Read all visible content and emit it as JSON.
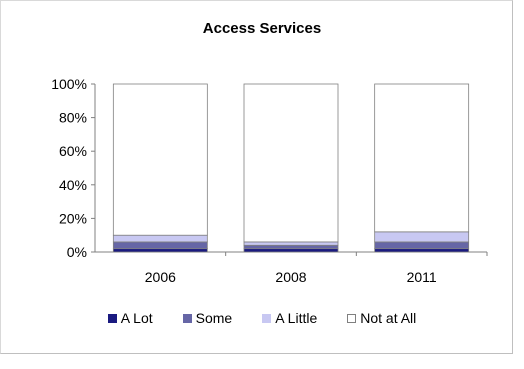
{
  "chart_data": {
    "type": "bar",
    "stacked": true,
    "title": "Access Services",
    "categories": [
      "2006",
      "2008",
      "2011"
    ],
    "yticks": [
      "0%",
      "20%",
      "40%",
      "60%",
      "80%",
      "100%"
    ],
    "ylim": [
      0,
      100
    ],
    "series": [
      {
        "name": "A Lot",
        "color": "#1a1a80",
        "values": [
          2,
          2,
          2
        ]
      },
      {
        "name": "Some",
        "color": "#6666a6",
        "values": [
          4,
          2,
          4
        ]
      },
      {
        "name": "A Little",
        "color": "#c8c8f2",
        "values": [
          4,
          2,
          6
        ]
      },
      {
        "name": "Not at All",
        "color": "#ffffff",
        "values": [
          90,
          94,
          88
        ]
      }
    ],
    "legend_position": "bottom",
    "grid": false
  }
}
